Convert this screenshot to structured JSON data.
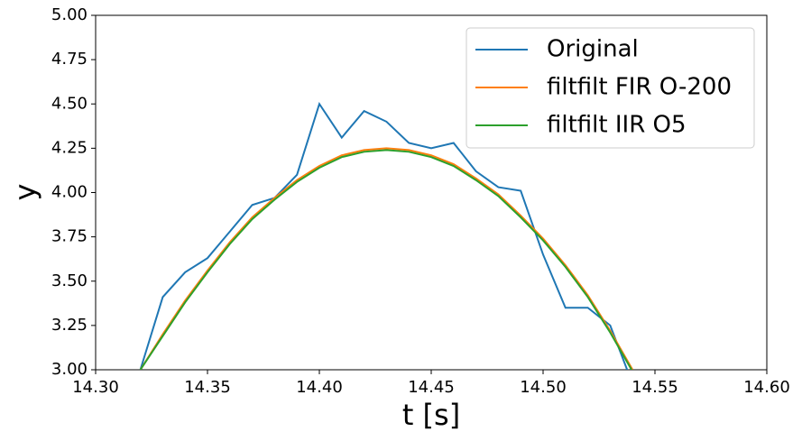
{
  "chart_data": {
    "type": "line",
    "xlabel": "t [s]",
    "ylabel": "y",
    "x": [
      14.32,
      14.33,
      14.34,
      14.35,
      14.36,
      14.37,
      14.38,
      14.39,
      14.4,
      14.41,
      14.42,
      14.43,
      14.44,
      14.45,
      14.46,
      14.47,
      14.48,
      14.49,
      14.5,
      14.51,
      14.52,
      14.53,
      14.54
    ],
    "series": [
      {
        "name": "Original",
        "color": "#1f77b4",
        "values": [
          3.0,
          3.41,
          3.55,
          3.63,
          3.78,
          3.93,
          3.97,
          4.1,
          4.5,
          4.31,
          4.46,
          4.4,
          4.28,
          4.25,
          4.28,
          4.12,
          4.03,
          4.01,
          3.65,
          3.35,
          3.35,
          3.25,
          2.92
        ]
      },
      {
        "name": "filtfilt FIR O-200",
        "color": "#ff7f0e",
        "values": [
          3.0,
          3.2,
          3.39,
          3.56,
          3.72,
          3.86,
          3.97,
          4.07,
          4.15,
          4.21,
          4.24,
          4.25,
          4.24,
          4.21,
          4.16,
          4.08,
          3.99,
          3.87,
          3.74,
          3.59,
          3.42,
          3.22,
          3.0
        ]
      },
      {
        "name": "filtfilt IIR O5",
        "color": "#2ca02c",
        "values": [
          3.0,
          3.19,
          3.38,
          3.55,
          3.71,
          3.85,
          3.96,
          4.06,
          4.14,
          4.2,
          4.23,
          4.24,
          4.23,
          4.2,
          4.15,
          4.07,
          3.98,
          3.86,
          3.73,
          3.58,
          3.41,
          3.21,
          2.99
        ]
      }
    ],
    "xlim": [
      14.3,
      14.6
    ],
    "xticks": [
      {
        "value": 14.3,
        "label": "14.30"
      },
      {
        "value": 14.35,
        "label": "14.35"
      },
      {
        "value": 14.4,
        "label": "14.40"
      },
      {
        "value": 14.45,
        "label": "14.45"
      },
      {
        "value": 14.5,
        "label": "14.50"
      },
      {
        "value": 14.55,
        "label": "14.55"
      },
      {
        "value": 14.6,
        "label": "14.60"
      }
    ],
    "ylim": [
      3.0,
      5.0
    ],
    "yticks": [
      {
        "value": 3.0,
        "label": "3.00"
      },
      {
        "value": 3.25,
        "label": "3.25"
      },
      {
        "value": 3.5,
        "label": "3.50"
      },
      {
        "value": 3.75,
        "label": "3.75"
      },
      {
        "value": 4.0,
        "label": "4.00"
      },
      {
        "value": 4.25,
        "label": "4.25"
      },
      {
        "value": 4.5,
        "label": "4.50"
      },
      {
        "value": 4.75,
        "label": "4.75"
      },
      {
        "value": 5.0,
        "label": "5.00"
      }
    ],
    "legend": "upper-right"
  }
}
